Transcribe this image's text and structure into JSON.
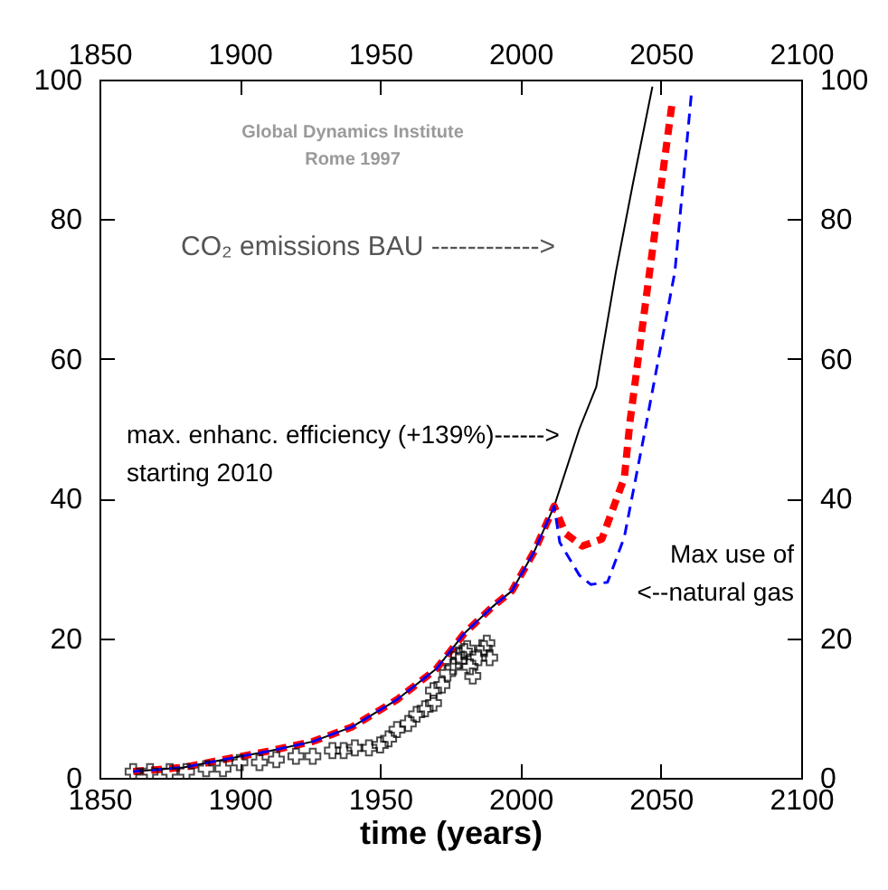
{
  "chart_data": {
    "type": "line",
    "xlabel": "time (years)",
    "xlim": [
      1850,
      2100
    ],
    "xticks": [
      1850,
      1900,
      1950,
      2000,
      2050,
      2100
    ],
    "x2lim": [
      1850,
      2100
    ],
    "x2ticks": [
      1850,
      1900,
      1950,
      2000,
      2050,
      2100
    ],
    "ylim": [
      0,
      100
    ],
    "yticks": [
      0,
      20,
      40,
      60,
      80,
      100
    ],
    "y2lim": [
      0,
      100
    ],
    "y2ticks": [
      0,
      20,
      40,
      60,
      80,
      100
    ],
    "grid": false,
    "annotations": [
      "Global Dynamics Institute\nRome 1997",
      "CO₂ emissions BAU ------------>",
      "max. enhanc. efficiency (+139%)------>\n starting 2010",
      "Max use of\n<--natural gas"
    ],
    "series": [
      {
        "color": "#000000",
        "line_style": "solid",
        "x": [
          1862,
          1880,
          1894,
          1910,
          1926,
          1940,
          1956,
          1970,
          1980,
          1990,
          1997,
          2005,
          2012,
          2021,
          2027,
          2034,
          2040,
          2047
        ],
        "values": [
          0.9,
          1.5,
          2.6,
          3.8,
          5.2,
          7.3,
          11.2,
          15.6,
          20.7,
          24.5,
          26.8,
          32.5,
          38.9,
          50,
          56,
          72.5,
          85,
          99
        ]
      },
      {
        "color": "#ff0000",
        "line_style": "dashed",
        "x": [
          1862,
          1880,
          1894,
          1910,
          1926,
          1940,
          1956,
          1970,
          1980,
          1990,
          1997,
          2005,
          2012,
          2016,
          2022,
          2029,
          2037,
          2039,
          2046,
          2054
        ],
        "values": [
          0.9,
          1.5,
          2.6,
          3.8,
          5.2,
          7.3,
          11.2,
          15.6,
          20.7,
          24.5,
          26.8,
          32.5,
          38.9,
          35,
          33.2,
          34.2,
          43,
          51,
          72.5,
          96.6
        ]
      },
      {
        "color": "#0000ff",
        "line_style": "dashed",
        "x": [
          1862,
          1880,
          1894,
          1910,
          1926,
          1940,
          1956,
          1970,
          1980,
          1990,
          1997,
          2005,
          2012,
          2014,
          2021,
          2025,
          2031,
          2037,
          2044,
          2055,
          2061
        ],
        "values": [
          0.9,
          1.5,
          2.6,
          3.8,
          5.2,
          7.3,
          11.2,
          15.6,
          20.7,
          24.5,
          26.8,
          32.5,
          38.9,
          33.7,
          29,
          27.7,
          28,
          34.5,
          49,
          72.5,
          98.5
        ]
      },
      {
        "type": "scatter",
        "color": "#000000",
        "marker": "cross",
        "x": [
          1862,
          1868,
          1875,
          1881,
          1888,
          1894,
          1900,
          1907,
          1913,
          1920,
          1926,
          1933,
          1937,
          1941,
          1946,
          1950,
          1953,
          1956,
          1960,
          1963,
          1966,
          1969,
          1969,
          1972,
          1974,
          1976,
          1978,
          1980,
          1981,
          1978,
          1982,
          1983,
          1985,
          1987,
          1989,
          1988
        ],
        "values": [
          0.9,
          0.9,
          0.9,
          0.9,
          1.3,
          1.3,
          2.2,
          2.2,
          2.6,
          3.1,
          3.1,
          3.9,
          3.9,
          4.3,
          4.3,
          4.7,
          5.6,
          6.9,
          7.8,
          9.1,
          9.9,
          10.7,
          12.5,
          13.3,
          15.0,
          15.9,
          16.8,
          18.1,
          18.5,
          17.6,
          15.9,
          14.6,
          17.2,
          18.5,
          17.2,
          19.3
        ]
      }
    ]
  }
}
